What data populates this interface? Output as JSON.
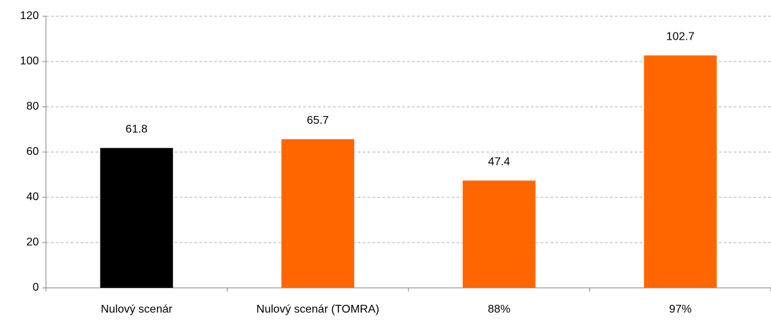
{
  "chart_data": {
    "type": "bar",
    "categories": [
      "Nulový scenár",
      "Nulový scenár (TOMRA)",
      "88%",
      "97%"
    ],
    "values": [
      61.8,
      65.7,
      47.4,
      102.7
    ],
    "colors": [
      "#000000",
      "#ff6600",
      "#ff6600",
      "#ff6600"
    ],
    "ylim": [
      0,
      120
    ],
    "yticks": [
      0,
      20,
      40,
      60,
      80,
      100,
      120
    ],
    "grid": true
  }
}
